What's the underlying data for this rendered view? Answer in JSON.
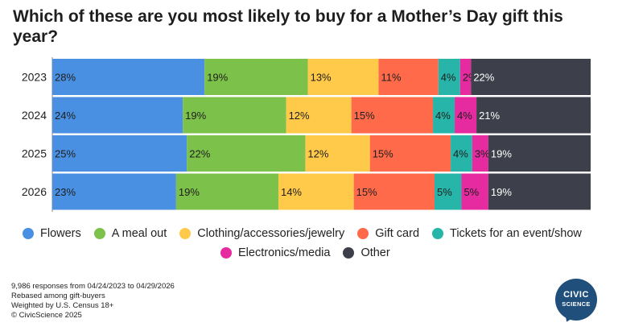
{
  "chart_data": {
    "type": "bar",
    "orientation": "horizontal",
    "stacked": true,
    "title": "Which of these are you most likely to buy for a Mother’s Day gift this year?",
    "categories": [
      "2023",
      "2024",
      "2025",
      "2026"
    ],
    "series": [
      {
        "name": "Flowers",
        "color": "#4a90e2",
        "values": [
          28,
          24,
          25,
          23
        ]
      },
      {
        "name": "A meal out",
        "color": "#7cc14a",
        "values": [
          19,
          19,
          22,
          19
        ]
      },
      {
        "name": "Clothing/accessories/jewelry",
        "color": "#ffc94a",
        "values": [
          13,
          12,
          12,
          14
        ]
      },
      {
        "name": "Gift card",
        "color": "#ff6b4a",
        "values": [
          11,
          15,
          15,
          15
        ]
      },
      {
        "name": "Tickets for an event/show",
        "color": "#26b5a8",
        "values": [
          4,
          4,
          4,
          5
        ]
      },
      {
        "name": "Electronics/media",
        "color": "#e62ba0",
        "values": [
          2,
          4,
          3,
          5
        ]
      },
      {
        "name": "Other",
        "color": "#3d3f4a",
        "values": [
          22,
          21,
          19,
          19
        ]
      }
    ],
    "value_suffix": "%",
    "legend_position": "bottom"
  },
  "footnotes": [
    "9,986 responses from 04/24/2023 to 04/29/2026",
    "Rebased among gift-buyers",
    "Weighted by U.S. Census 18+",
    "© CivicScience 2025"
  ],
  "logo": {
    "line1": "CIVIC",
    "line2": "SCIENCE"
  }
}
